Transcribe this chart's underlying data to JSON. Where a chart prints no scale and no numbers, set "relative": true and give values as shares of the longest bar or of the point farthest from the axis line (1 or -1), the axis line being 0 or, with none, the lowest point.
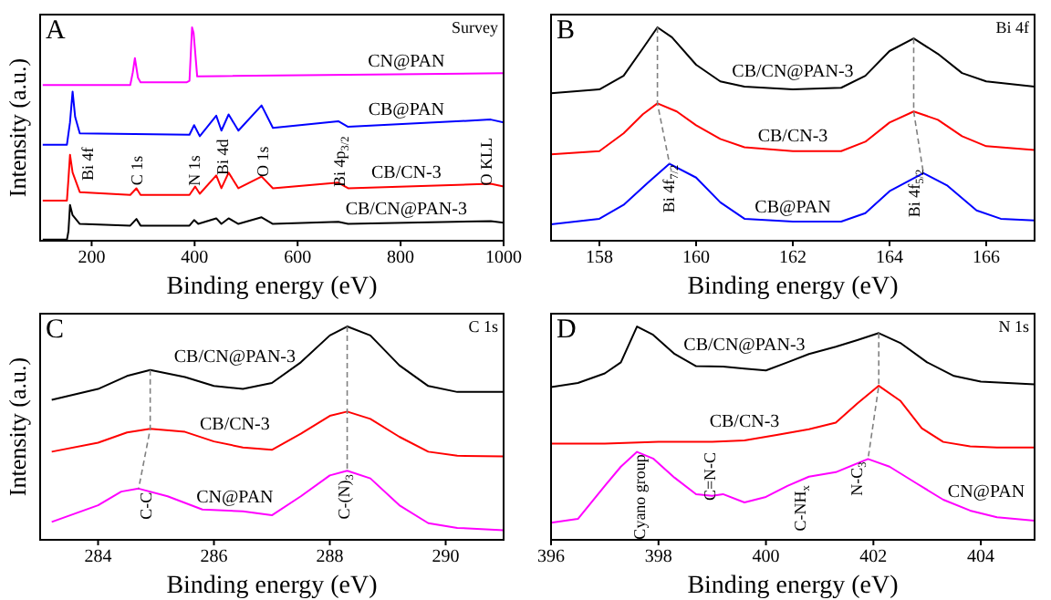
{
  "chart_data": [
    {
      "type": "line",
      "title": "A",
      "subtitle": "Survey",
      "xlabel": "Binding energy (eV)",
      "ylabel": "Intensity (a.u.)",
      "relative": true,
      "marker": "none",
      "xlim": [
        100,
        1000
      ],
      "xticks": [
        200,
        400,
        600,
        800,
        1000
      ],
      "series": [
        {
          "name": "CN@PAN",
          "color": "#ff00ff",
          "x": [
            105,
            275,
            280,
            284,
            290,
            295,
            385,
            390,
            395,
            398,
            405,
            450,
            1000
          ],
          "values": [
            0.73,
            0.73,
            0.79,
            0.856,
            0.764,
            0.743,
            0.743,
            0.75,
            1.0,
            0.974,
            0.77,
            0.772,
            0.785
          ]
        },
        {
          "name": "CB@PAN",
          "color": "#0000ff",
          "x": [
            105,
            152,
            158,
            163,
            168,
            177,
            390,
            399,
            410,
            442,
            452,
            466,
            485,
            530,
            552,
            679,
            698,
            975,
            1000
          ],
          "values": [
            0.45,
            0.45,
            0.555,
            0.699,
            0.58,
            0.503,
            0.497,
            0.542,
            0.49,
            0.586,
            0.516,
            0.592,
            0.516,
            0.634,
            0.529,
            0.56,
            0.534,
            0.568,
            0.555
          ]
        },
        {
          "name": "CB/CN-3",
          "color": "#ff0000",
          "x": [
            105,
            152,
            155,
            158,
            163,
            177,
            275,
            287,
            295,
            390,
            401,
            410,
            442,
            452,
            466,
            485,
            530,
            552,
            679,
            698,
            975,
            1000
          ],
          "values": [
            0.188,
            0.188,
            0.29,
            0.403,
            0.32,
            0.228,
            0.215,
            0.246,
            0.215,
            0.215,
            0.254,
            0.22,
            0.306,
            0.246,
            0.319,
            0.246,
            0.301,
            0.246,
            0.272,
            0.246,
            0.267,
            0.254
          ]
        },
        {
          "name": "CB/CN@PAN-3",
          "color": "#000000",
          "x": [
            105,
            152,
            155,
            158,
            163,
            177,
            275,
            287,
            295,
            390,
            399,
            407,
            442,
            452,
            466,
            485,
            530,
            552,
            679,
            698,
            975,
            1000
          ],
          "values": [
            0.005,
            0.005,
            0.045,
            0.168,
            0.12,
            0.079,
            0.071,
            0.102,
            0.071,
            0.071,
            0.097,
            0.079,
            0.105,
            0.079,
            0.105,
            0.079,
            0.11,
            0.079,
            0.089,
            0.079,
            0.092,
            0.084
          ]
        }
      ],
      "annotations": [
        "Bi 4f",
        "C 1s",
        "N 1s",
        "Bi 4d",
        "O 1s",
        "Bi 4p$_{3/2}$",
        "O KLL"
      ]
    },
    {
      "type": "line",
      "title": "B",
      "subtitle": "Bi 4f",
      "xlabel": "Binding energy (eV)",
      "relative": true,
      "marker": "none",
      "xlim": [
        157,
        167
      ],
      "xticks": [
        158,
        160,
        162,
        164,
        166
      ],
      "series": [
        {
          "name": "CB/CN@PAN-3",
          "color": "#000000",
          "x": [
            157,
            158,
            158.5,
            158.9,
            159.2,
            159.5,
            160,
            160.5,
            161,
            162,
            163,
            163.5,
            164,
            164.5,
            165,
            165.5,
            166,
            167
          ],
          "values": [
            0.691,
            0.709,
            0.773,
            0.902,
            1.0,
            0.954,
            0.825,
            0.747,
            0.722,
            0.709,
            0.717,
            0.773,
            0.889,
            0.948,
            0.876,
            0.786,
            0.747,
            0.722
          ]
        },
        {
          "name": "CB/CN-3",
          "color": "#ff0000",
          "x": [
            157,
            158,
            158.5,
            158.9,
            159.2,
            159.6,
            160,
            160.5,
            161,
            162,
            163,
            163.5,
            164,
            164.5,
            165,
            165.5,
            166,
            167
          ],
          "values": [
            0.405,
            0.42,
            0.503,
            0.593,
            0.644,
            0.606,
            0.541,
            0.477,
            0.438,
            0.42,
            0.42,
            0.464,
            0.554,
            0.606,
            0.567,
            0.49,
            0.443,
            0.425
          ]
        },
        {
          "name": "CB@PAN",
          "color": "#0000ff",
          "x": [
            157,
            158,
            158.5,
            159,
            159.45,
            160,
            160.5,
            161,
            162,
            163,
            163.5,
            164,
            164.7,
            165.2,
            165.8,
            166.3,
            167
          ],
          "values": [
            0.077,
            0.103,
            0.168,
            0.271,
            0.361,
            0.296,
            0.18,
            0.103,
            0.09,
            0.09,
            0.129,
            0.232,
            0.317,
            0.258,
            0.142,
            0.103,
            0.095
          ]
        },
        {
          "type": "line",
          "color": "#808080",
          "line_style": "dashed",
          "x": [
            159.2,
            159.2,
            159.45
          ],
          "values": [
            1.0,
            0.644,
            0.361
          ]
        },
        {
          "type": "line",
          "color": "#808080",
          "line_style": "dashed",
          "x": [
            164.5,
            164.5,
            164.7
          ],
          "values": [
            0.948,
            0.606,
            0.317
          ]
        }
      ],
      "annotations": [
        "Bi 4f$_{7/2}$",
        "Bi 4f$_{5/2}$"
      ]
    },
    {
      "type": "line",
      "title": "C",
      "subtitle": "C 1s",
      "xlabel": "Binding energy (eV)",
      "ylabel": "Intensity (a.u.)",
      "relative": true,
      "marker": "none",
      "xlim": [
        283,
        291
      ],
      "xticks": [
        284,
        286,
        288,
        290
      ],
      "series": [
        {
          "name": "CB/CN@PAN-3",
          "color": "#000000",
          "x": [
            283.2,
            284,
            284.5,
            284.9,
            285.5,
            286,
            286.5,
            287,
            287.5,
            288,
            288.3,
            288.7,
            289.2,
            289.7,
            290.2,
            291
          ],
          "values": [
            0.656,
            0.707,
            0.768,
            0.796,
            0.763,
            0.721,
            0.707,
            0.735,
            0.832,
            0.958,
            1.0,
            0.958,
            0.818,
            0.721,
            0.693,
            0.693
          ]
        },
        {
          "name": "CB/CN-3",
          "color": "#ff0000",
          "x": [
            283.2,
            284,
            284.5,
            284.9,
            285.5,
            286,
            286.5,
            287,
            287.5,
            288,
            288.3,
            288.7,
            289.2,
            289.7,
            290.2,
            291
          ],
          "values": [
            0.413,
            0.455,
            0.503,
            0.52,
            0.506,
            0.461,
            0.433,
            0.422,
            0.497,
            0.581,
            0.601,
            0.567,
            0.483,
            0.413,
            0.394,
            0.391
          ]
        },
        {
          "name": "CN@PAN",
          "color": "#ff00ff",
          "x": [
            283.2,
            284,
            284.4,
            284.7,
            285.2,
            285.8,
            286.5,
            287,
            287.5,
            288,
            288.3,
            288.7,
            289.2,
            289.7,
            290.2,
            291
          ],
          "values": [
            0.084,
            0.162,
            0.226,
            0.24,
            0.204,
            0.142,
            0.134,
            0.115,
            0.204,
            0.302,
            0.324,
            0.288,
            0.162,
            0.078,
            0.056,
            0.045
          ]
        },
        {
          "type": "line",
          "color": "#808080",
          "line_style": "dashed",
          "x": [
            284.9,
            284.9,
            284.7
          ],
          "values": [
            0.796,
            0.52,
            0.24
          ]
        },
        {
          "type": "line",
          "color": "#808080",
          "line_style": "dashed",
          "x": [
            288.3,
            288.3,
            288.3
          ],
          "values": [
            1.0,
            0.601,
            0.324
          ]
        }
      ],
      "annotations": [
        "C-C",
        "C-(N)$_{3}$"
      ]
    },
    {
      "type": "line",
      "title": "D",
      "subtitle": "N 1s",
      "xlabel": "Binding energy (eV)",
      "relative": true,
      "marker": "none",
      "xlim": [
        396,
        405
      ],
      "xticks": [
        396,
        398,
        400,
        402,
        404
      ],
      "series": [
        {
          "name": "CB/CN@PAN-3",
          "color": "#000000",
          "x": [
            396,
            396.5,
            397,
            397.3,
            397.6,
            397.9,
            398.3,
            398.7,
            399.2,
            399.6,
            400,
            400.4,
            400.8,
            401.3,
            401.7,
            402.1,
            402.5,
            403,
            403.5,
            404,
            405
          ],
          "values": [
            0.716,
            0.735,
            0.78,
            0.832,
            1.0,
            0.961,
            0.871,
            0.814,
            0.812,
            0.802,
            0.794,
            0.832,
            0.871,
            0.905,
            0.936,
            0.969,
            0.923,
            0.832,
            0.768,
            0.742,
            0.729
          ]
        },
        {
          "name": "CB/CN-3",
          "color": "#ff0000",
          "x": [
            396,
            397,
            398,
            399,
            399.6,
            400.2,
            400.8,
            401.3,
            401.7,
            402.1,
            402.5,
            402.9,
            403.3,
            403.8,
            404.3,
            405
          ],
          "values": [
            0.451,
            0.451,
            0.459,
            0.459,
            0.466,
            0.492,
            0.518,
            0.549,
            0.639,
            0.722,
            0.652,
            0.523,
            0.459,
            0.438,
            0.433,
            0.433
          ]
        },
        {
          "name": "CN@PAN",
          "color": "#ff00ff",
          "x": [
            396,
            396.5,
            397,
            397.3,
            397.6,
            397.9,
            398.3,
            398.7,
            399,
            399.2,
            399.6,
            400,
            400.4,
            400.8,
            401.3,
            401.9,
            402.3,
            402.8,
            403.3,
            403.8,
            404.3,
            405
          ],
          "values": [
            0.08,
            0.098,
            0.253,
            0.343,
            0.412,
            0.381,
            0.291,
            0.214,
            0.206,
            0.214,
            0.175,
            0.201,
            0.253,
            0.296,
            0.317,
            0.379,
            0.343,
            0.265,
            0.188,
            0.137,
            0.106,
            0.09
          ]
        },
        {
          "type": "line",
          "color": "#808080",
          "line_style": "dashed",
          "x": [
            402.1,
            402.1,
            401.9
          ],
          "values": [
            0.969,
            0.722,
            0.379
          ]
        }
      ],
      "annotations": [
        "Cyano group",
        "C=N-C",
        "C-NH$_{x}$",
        "N-C$_{3}$"
      ]
    }
  ]
}
